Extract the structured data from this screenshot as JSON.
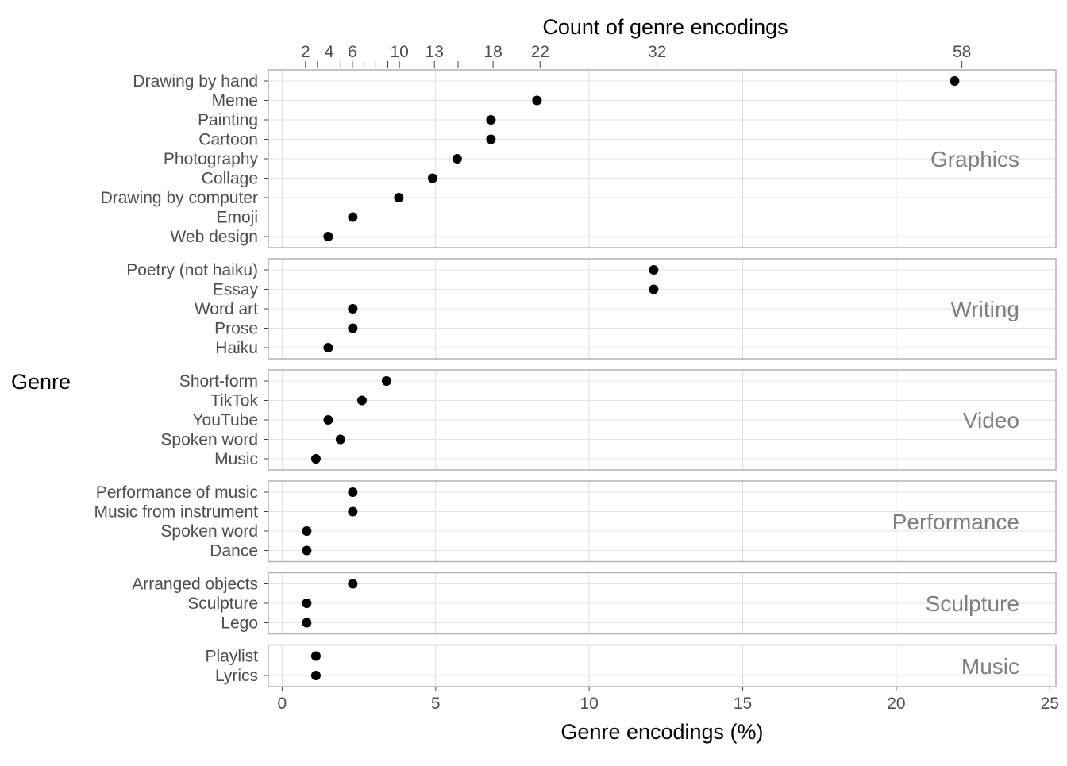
{
  "chart_data": {
    "type": "scatter",
    "title": "",
    "xlabel": "Genre encodings (%)",
    "ylabel": "Genre",
    "top_axis_label": "Count of genre encodings",
    "xlim": [
      -0.45,
      25.2
    ],
    "x_ticks": [
      0,
      5,
      10,
      15,
      20,
      25
    ],
    "x_tick_labels": [
      "0",
      "5",
      "10",
      "15",
      "20",
      "25"
    ],
    "top_ticks": [
      {
        "label": "2",
        "x": 0.76
      },
      {
        "label": "",
        "x": 1.15
      },
      {
        "label": "4",
        "x": 1.53
      },
      {
        "label": "",
        "x": 1.91
      },
      {
        "label": "6",
        "x": 2.29
      },
      {
        "label": "",
        "x": 2.67
      },
      {
        "label": "",
        "x": 3.05
      },
      {
        "label": "",
        "x": 3.44
      },
      {
        "label": "10",
        "x": 3.82
      },
      {
        "label": "13",
        "x": 4.96
      },
      {
        "label": "",
        "x": 5.73
      },
      {
        "label": "18",
        "x": 6.87
      },
      {
        "label": "22",
        "x": 8.4
      },
      {
        "label": "32",
        "x": 12.21
      },
      {
        "label": "58",
        "x": 22.14
      }
    ],
    "grid": true,
    "point_color": "#000000",
    "panel_label_color": "#7f7f7f",
    "panels": [
      {
        "name": "Graphics",
        "categories": [
          "Drawing by hand",
          "Meme",
          "Painting",
          "Cartoon",
          "Photography",
          "Collage",
          "Drawing by computer",
          "Emoji",
          "Web design"
        ],
        "values": [
          21.9,
          8.3,
          6.8,
          6.8,
          5.7,
          4.9,
          3.8,
          2.3,
          1.5
        ]
      },
      {
        "name": "Writing",
        "categories": [
          "Poetry (not haiku)",
          "Essay",
          "Word art",
          "Prose",
          "Haiku"
        ],
        "values": [
          12.1,
          12.1,
          2.3,
          2.3,
          1.5
        ]
      },
      {
        "name": "Video",
        "categories": [
          "Short-form",
          "TikTok",
          "YouTube",
          "Spoken word",
          "Music"
        ],
        "values": [
          3.4,
          2.6,
          1.5,
          1.9,
          1.1
        ]
      },
      {
        "name": "Performance",
        "categories": [
          "Performance of music",
          "Music from instrument",
          "Spoken word",
          "Dance"
        ],
        "values": [
          2.3,
          2.3,
          0.8,
          0.8
        ]
      },
      {
        "name": "Sculpture",
        "categories": [
          "Arranged objects",
          "Sculpture",
          "Lego"
        ],
        "values": [
          2.3,
          0.8,
          0.8
        ]
      },
      {
        "name": "Music",
        "categories": [
          "Playlist",
          "Lyrics"
        ],
        "values": [
          1.1,
          1.1
        ]
      }
    ]
  }
}
